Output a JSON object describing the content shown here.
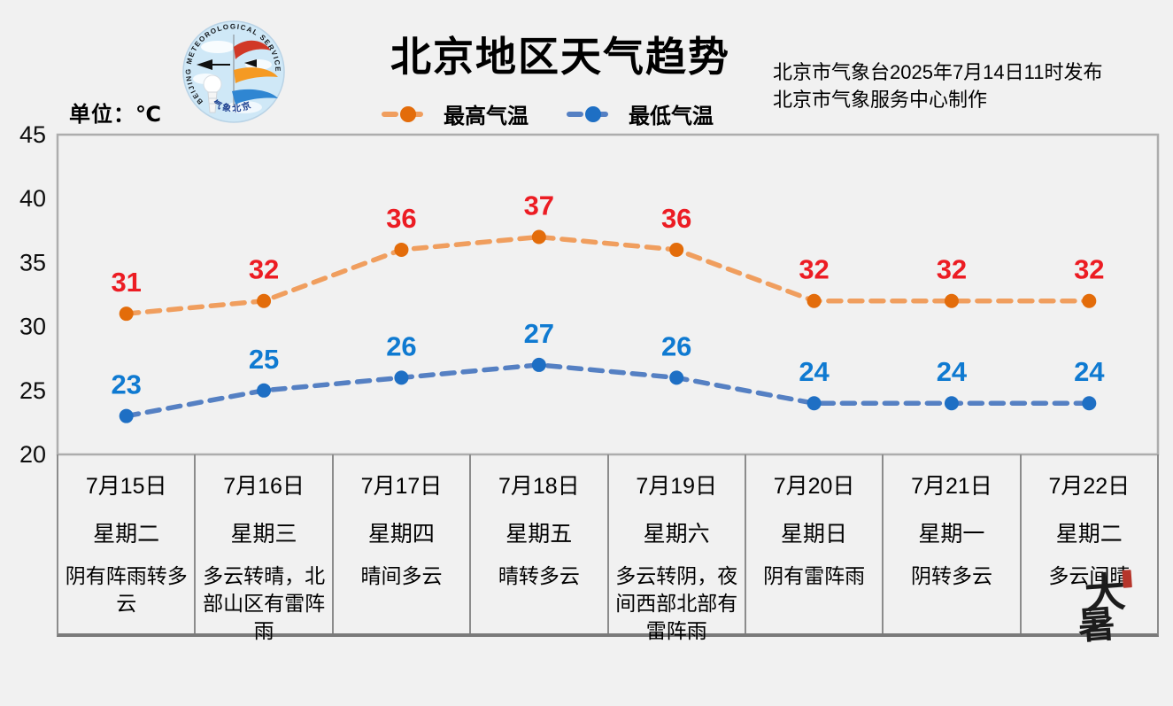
{
  "header": {
    "title": "北京地区天气趋势",
    "unit_label": "单位：℃",
    "release_line1": "北京市气象台2025年7月14日11时发布",
    "release_line2": "北京市气象服务中心制作"
  },
  "logo": {
    "ring_text": "BEIJING METEOROLOGICAL SERVICE",
    "bottom_text": "气象北京"
  },
  "legend": {
    "items": [
      {
        "label": "最高气温",
        "line_color": "#F09E5E",
        "marker_color": "#E36C0A"
      },
      {
        "label": "最低气温",
        "line_color": "#5580C3",
        "marker_color": "#1E6FC4"
      }
    ]
  },
  "chart_data": {
    "type": "line",
    "title": "北京地区天气趋势",
    "ylabel": "单位：℃",
    "categories": [
      "7月15日",
      "7月16日",
      "7月17日",
      "7月18日",
      "7月19日",
      "7月20日",
      "7月21日",
      "7月22日"
    ],
    "series": [
      {
        "name": "最高气温",
        "values": [
          31,
          32,
          36,
          37,
          36,
          32,
          32,
          32
        ],
        "line_color": "#F09E5E",
        "marker_color": "#E36C0A",
        "label_color": "#EC1C23"
      },
      {
        "name": "最低气温",
        "values": [
          23,
          25,
          26,
          27,
          26,
          24,
          24,
          24
        ],
        "line_color": "#5580C3",
        "marker_color": "#1E6FC4",
        "label_color": "#0F7AD1"
      }
    ],
    "ylim": [
      20,
      45
    ],
    "yticks": [
      20,
      25,
      30,
      35,
      40,
      45
    ],
    "grid": false,
    "legend_position": "top"
  },
  "table": {
    "days": [
      {
        "date": "7月15日",
        "weekday": "星期二",
        "weather": "阴有阵雨转多云"
      },
      {
        "date": "7月16日",
        "weekday": "星期三",
        "weather": "多云转晴，北部山区有雷阵雨"
      },
      {
        "date": "7月17日",
        "weekday": "星期四",
        "weather": "晴间多云"
      },
      {
        "date": "7月18日",
        "weekday": "星期五",
        "weather": "晴转多云"
      },
      {
        "date": "7月19日",
        "weekday": "星期六",
        "weather": "多云转阴，夜间西部北部有雷阵雨"
      },
      {
        "date": "7月20日",
        "weekday": "星期日",
        "weather": "阴有雷阵雨"
      },
      {
        "date": "7月21日",
        "weekday": "星期一",
        "weather": "阴转多云"
      },
      {
        "date": "7月22日",
        "weekday": "星期二",
        "weather": "多云间晴"
      }
    ]
  },
  "solar_term": {
    "char1": "大",
    "char2": "暑"
  }
}
